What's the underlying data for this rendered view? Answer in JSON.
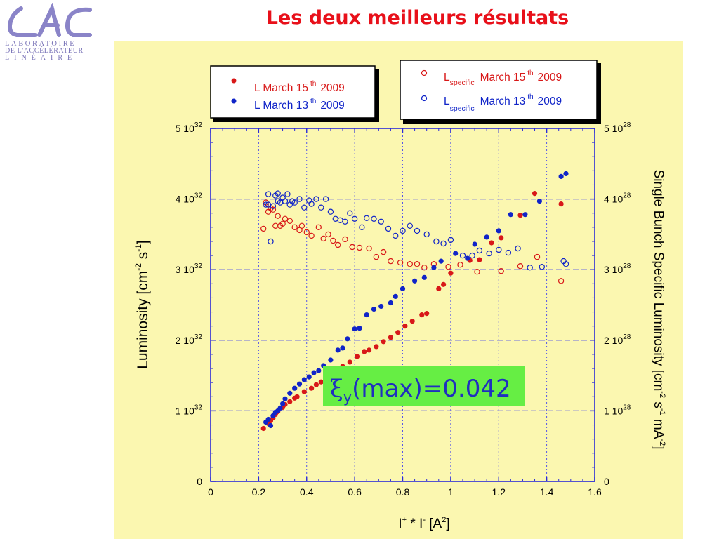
{
  "slide": {
    "title": "Les deux meilleurs résultats",
    "logo": {
      "letters": "LAL",
      "line1": "LABORATOIRE",
      "line2": "DE L'ACCÉLÉRATEUR",
      "line3": "LINÉAIRE"
    }
  },
  "annotation": {
    "symbol": "ξ",
    "subscript": "y",
    "text": "(max)=0.042",
    "background": "#66ee44",
    "color": "#1f2fbf"
  },
  "colors": {
    "panel": "#fbf7b0",
    "red": "#d81818",
    "blue": "#1024c8",
    "axis": "#2a2ad8",
    "grid": "#4444ee"
  },
  "chart_data": {
    "type": "scatter",
    "xlabel": "I⁺ * I⁻ [A²]",
    "ylabel_left": "Luminosity  [cm⁻² s⁻¹]",
    "ylabel_right": "Single Bunch Specific Luminosity  [cm⁻² s⁻¹ mA⁻²]",
    "xlim": [
      0,
      1.6
    ],
    "ylim_left": [
      0,
      5e+32
    ],
    "ylim_right": [
      0,
      5e+28
    ],
    "grid": true,
    "x_ticks": [
      "0",
      "0.2",
      "0.4",
      "0.6",
      "0.8",
      "1",
      "1.2",
      "1.4",
      "1.6"
    ],
    "y_ticks_left": [
      {
        "mant": "0",
        "exp": ""
      },
      {
        "mant": "1 10",
        "exp": "32"
      },
      {
        "mant": "2 10",
        "exp": "32"
      },
      {
        "mant": "3 10",
        "exp": "32"
      },
      {
        "mant": "4 10",
        "exp": "32"
      },
      {
        "mant": "5 10",
        "exp": "32"
      }
    ],
    "y_ticks_right": [
      {
        "mant": "0",
        "exp": ""
      },
      {
        "mant": "1 10",
        "exp": "28"
      },
      {
        "mant": "2 10",
        "exp": "28"
      },
      {
        "mant": "3 10",
        "exp": "28"
      },
      {
        "mant": "4 10",
        "exp": "28"
      },
      {
        "mant": "5 10",
        "exp": "28"
      }
    ],
    "legend_left": [
      {
        "marker": "filled",
        "color": "red",
        "text": "L March 15",
        "sup": "th",
        "year": "2009"
      },
      {
        "marker": "filled",
        "color": "blue",
        "text": "L March 13",
        "sup": "th",
        "year": "2009"
      }
    ],
    "legend_right": [
      {
        "marker": "open",
        "color": "red",
        "text": "L",
        "sub": "specific",
        "text2": "March 15",
        "sup": "th",
        "year": "2009"
      },
      {
        "marker": "open",
        "color": "blue",
        "text": "L",
        "sub": "specific",
        "text2": "March 13",
        "sup": "th",
        "year": "2009"
      }
    ],
    "series": [
      {
        "name": "L March 15th 2009",
        "axis": "left",
        "marker": "filled",
        "color": "#d81818",
        "unit": "1e32 cm^-2 s^-1",
        "points": [
          [
            0.22,
            0.75
          ],
          [
            0.24,
            0.82
          ],
          [
            0.25,
            0.86
          ],
          [
            0.26,
            0.9
          ],
          [
            0.27,
            0.95
          ],
          [
            0.28,
            0.99
          ],
          [
            0.3,
            1.05
          ],
          [
            0.31,
            1.09
          ],
          [
            0.33,
            1.13
          ],
          [
            0.35,
            1.18
          ],
          [
            0.36,
            1.2
          ],
          [
            0.39,
            1.27
          ],
          [
            0.42,
            1.32
          ],
          [
            0.44,
            1.37
          ],
          [
            0.46,
            1.41
          ],
          [
            0.48,
            1.48
          ],
          [
            0.5,
            1.54
          ],
          [
            0.52,
            1.57
          ],
          [
            0.55,
            1.63
          ],
          [
            0.58,
            1.69
          ],
          [
            0.61,
            1.77
          ],
          [
            0.64,
            1.84
          ],
          [
            0.66,
            1.86
          ],
          [
            0.69,
            1.91
          ],
          [
            0.72,
            1.98
          ],
          [
            0.75,
            2.04
          ],
          [
            0.78,
            2.11
          ],
          [
            0.81,
            2.2
          ],
          [
            0.84,
            2.27
          ],
          [
            0.88,
            2.36
          ],
          [
            0.9,
            2.38
          ],
          [
            0.95,
            2.73
          ],
          [
            0.97,
            2.79
          ],
          [
            1.0,
            2.95
          ],
          [
            1.08,
            3.13
          ],
          [
            1.12,
            3.14
          ],
          [
            1.17,
            3.38
          ],
          [
            1.21,
            3.45
          ],
          [
            1.29,
            3.77
          ],
          [
            1.35,
            4.08
          ],
          [
            1.46,
            3.93
          ]
        ]
      },
      {
        "name": "L March 13th 2009",
        "axis": "left",
        "marker": "filled",
        "color": "#1024c8",
        "unit": "1e32 cm^-2 s^-1",
        "points": [
          [
            0.23,
            0.84
          ],
          [
            0.24,
            0.88
          ],
          [
            0.25,
            0.79
          ],
          [
            0.26,
            0.93
          ],
          [
            0.27,
            0.98
          ],
          [
            0.28,
            1.0
          ],
          [
            0.29,
            1.04
          ],
          [
            0.3,
            1.1
          ],
          [
            0.31,
            1.17
          ],
          [
            0.33,
            1.25
          ],
          [
            0.35,
            1.32
          ],
          [
            0.37,
            1.38
          ],
          [
            0.39,
            1.44
          ],
          [
            0.41,
            1.48
          ],
          [
            0.43,
            1.54
          ],
          [
            0.45,
            1.57
          ],
          [
            0.47,
            1.64
          ],
          [
            0.5,
            1.72
          ],
          [
            0.53,
            1.86
          ],
          [
            0.55,
            1.89
          ],
          [
            0.57,
            2.02
          ],
          [
            0.6,
            2.16
          ],
          [
            0.62,
            2.17
          ],
          [
            0.65,
            2.36
          ],
          [
            0.68,
            2.44
          ],
          [
            0.71,
            2.48
          ],
          [
            0.75,
            2.53
          ],
          [
            0.77,
            2.62
          ],
          [
            0.8,
            2.73
          ],
          [
            0.85,
            2.84
          ],
          [
            0.89,
            2.89
          ],
          [
            0.93,
            3.03
          ],
          [
            0.96,
            3.12
          ],
          [
            1.02,
            3.23
          ],
          [
            1.07,
            3.16
          ],
          [
            1.1,
            3.36
          ],
          [
            1.15,
            3.46
          ],
          [
            1.2,
            3.55
          ],
          [
            1.25,
            3.78
          ],
          [
            1.31,
            3.78
          ],
          [
            1.37,
            3.97
          ],
          [
            1.46,
            4.32
          ],
          [
            1.48,
            4.36
          ]
        ]
      },
      {
        "name": "Lspecific March 15th 2009",
        "axis": "right",
        "marker": "open",
        "color": "#d81818",
        "unit": "1e28 cm^-2 s^-1 mA^-2",
        "points": [
          [
            0.22,
            3.58
          ],
          [
            0.23,
            3.95
          ],
          [
            0.24,
            3.82
          ],
          [
            0.25,
            3.87
          ],
          [
            0.26,
            3.85
          ],
          [
            0.27,
            3.62
          ],
          [
            0.28,
            3.76
          ],
          [
            0.29,
            3.62
          ],
          [
            0.3,
            3.65
          ],
          [
            0.31,
            3.72
          ],
          [
            0.33,
            3.69
          ],
          [
            0.35,
            3.6
          ],
          [
            0.37,
            3.56
          ],
          [
            0.38,
            3.62
          ],
          [
            0.4,
            3.53
          ],
          [
            0.42,
            3.48
          ],
          [
            0.45,
            3.6
          ],
          [
            0.47,
            3.44
          ],
          [
            0.49,
            3.5
          ],
          [
            0.51,
            3.41
          ],
          [
            0.53,
            3.35
          ],
          [
            0.56,
            3.43
          ],
          [
            0.59,
            3.32
          ],
          [
            0.62,
            3.31
          ],
          [
            0.66,
            3.3
          ],
          [
            0.69,
            3.18
          ],
          [
            0.72,
            3.25
          ],
          [
            0.75,
            3.12
          ],
          [
            0.79,
            3.1
          ],
          [
            0.83,
            3.08
          ],
          [
            0.86,
            3.08
          ],
          [
            0.89,
            3.03
          ],
          [
            0.93,
            3.08
          ],
          [
            0.99,
            3.04
          ],
          [
            1.04,
            3.07
          ],
          [
            1.11,
            2.97
          ],
          [
            1.21,
            2.98
          ],
          [
            1.29,
            3.05
          ],
          [
            1.36,
            3.18
          ],
          [
            1.46,
            2.84
          ]
        ]
      },
      {
        "name": "Lspecific March 13th 2009",
        "axis": "right",
        "marker": "open",
        "color": "#1024c8",
        "unit": "1e28 cm^-2 s^-1 mA^-2",
        "points": [
          [
            0.23,
            3.92
          ],
          [
            0.24,
            3.92
          ],
          [
            0.24,
            4.07
          ],
          [
            0.25,
            3.4
          ],
          [
            0.26,
            3.9
          ],
          [
            0.27,
            4.05
          ],
          [
            0.28,
            3.97
          ],
          [
            0.28,
            4.08
          ],
          [
            0.29,
            3.95
          ],
          [
            0.3,
            4.02
          ],
          [
            0.31,
            3.97
          ],
          [
            0.32,
            4.07
          ],
          [
            0.33,
            3.92
          ],
          [
            0.34,
            3.97
          ],
          [
            0.35,
            3.95
          ],
          [
            0.37,
            4.0
          ],
          [
            0.39,
            3.88
          ],
          [
            0.41,
            3.98
          ],
          [
            0.42,
            3.93
          ],
          [
            0.44,
            4.0
          ],
          [
            0.46,
            3.88
          ],
          [
            0.48,
            4.0
          ],
          [
            0.5,
            3.82
          ],
          [
            0.52,
            3.72
          ],
          [
            0.54,
            3.7
          ],
          [
            0.56,
            3.68
          ],
          [
            0.58,
            3.8
          ],
          [
            0.6,
            3.72
          ],
          [
            0.63,
            3.6
          ],
          [
            0.65,
            3.73
          ],
          [
            0.68,
            3.72
          ],
          [
            0.71,
            3.68
          ],
          [
            0.74,
            3.58
          ],
          [
            0.77,
            3.48
          ],
          [
            0.8,
            3.55
          ],
          [
            0.83,
            3.62
          ],
          [
            0.86,
            3.55
          ],
          [
            0.9,
            3.5
          ],
          [
            0.94,
            3.4
          ],
          [
            0.97,
            3.37
          ],
          [
            1.0,
            3.42
          ],
          [
            1.05,
            3.2
          ],
          [
            1.09,
            3.2
          ],
          [
            1.12,
            3.27
          ],
          [
            1.16,
            3.23
          ],
          [
            1.2,
            3.28
          ],
          [
            1.24,
            3.24
          ],
          [
            1.28,
            3.3
          ],
          [
            1.33,
            3.03
          ],
          [
            1.38,
            3.04
          ],
          [
            1.47,
            3.12
          ],
          [
            1.48,
            3.08
          ]
        ]
      }
    ]
  }
}
